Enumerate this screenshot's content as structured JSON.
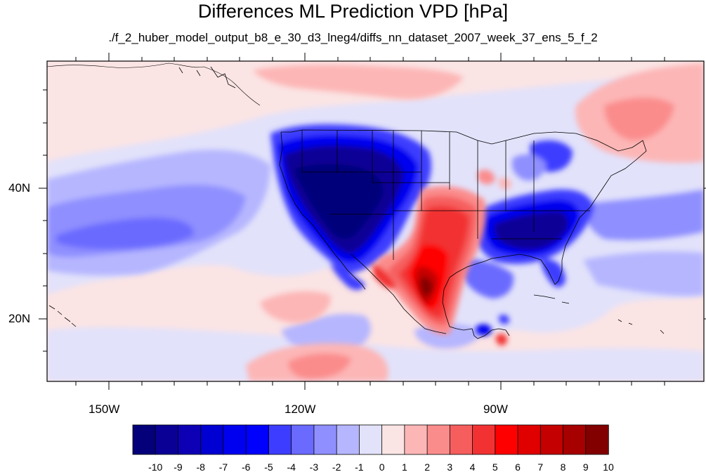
{
  "figure": {
    "title": "Differences ML Prediction VPD [hPa]",
    "subtitle": "./f_2_huber_model_output_b8_e_30_d3_lneg4/diffs_nn_dataset_2007_week_37_ens_5_f_2"
  },
  "map": {
    "lon_labels": [
      "150W",
      "120W",
      "90W"
    ],
    "lat_labels": [
      "40N",
      "20N"
    ],
    "lon_range": [
      -159,
      -60
    ],
    "lat_range": [
      11,
      58
    ],
    "ocean_color": "#fbe4e4",
    "land_outline_color": "#000000"
  },
  "colorbar": {
    "tick_labels": [
      "-10",
      "-9",
      "-8",
      "-7",
      "-6",
      "-5",
      "-4",
      "-3",
      "-2",
      "-1",
      "0",
      "1",
      "2",
      "3",
      "4",
      "5",
      "6",
      "7",
      "8",
      "9",
      "10"
    ],
    "colors": [
      "#04007a",
      "#0a0096",
      "#0d00b4",
      "#0000d2",
      "#0000f0",
      "#0000ff",
      "#3d3dff",
      "#6a6aff",
      "#8f8fff",
      "#b6b6ff",
      "#e2e2fb",
      "#fbe4e4",
      "#fdb6b6",
      "#fb8c8c",
      "#f65e5e",
      "#f23232",
      "#ff0000",
      "#e00000",
      "#c40000",
      "#a60000",
      "#820000"
    ]
  }
}
